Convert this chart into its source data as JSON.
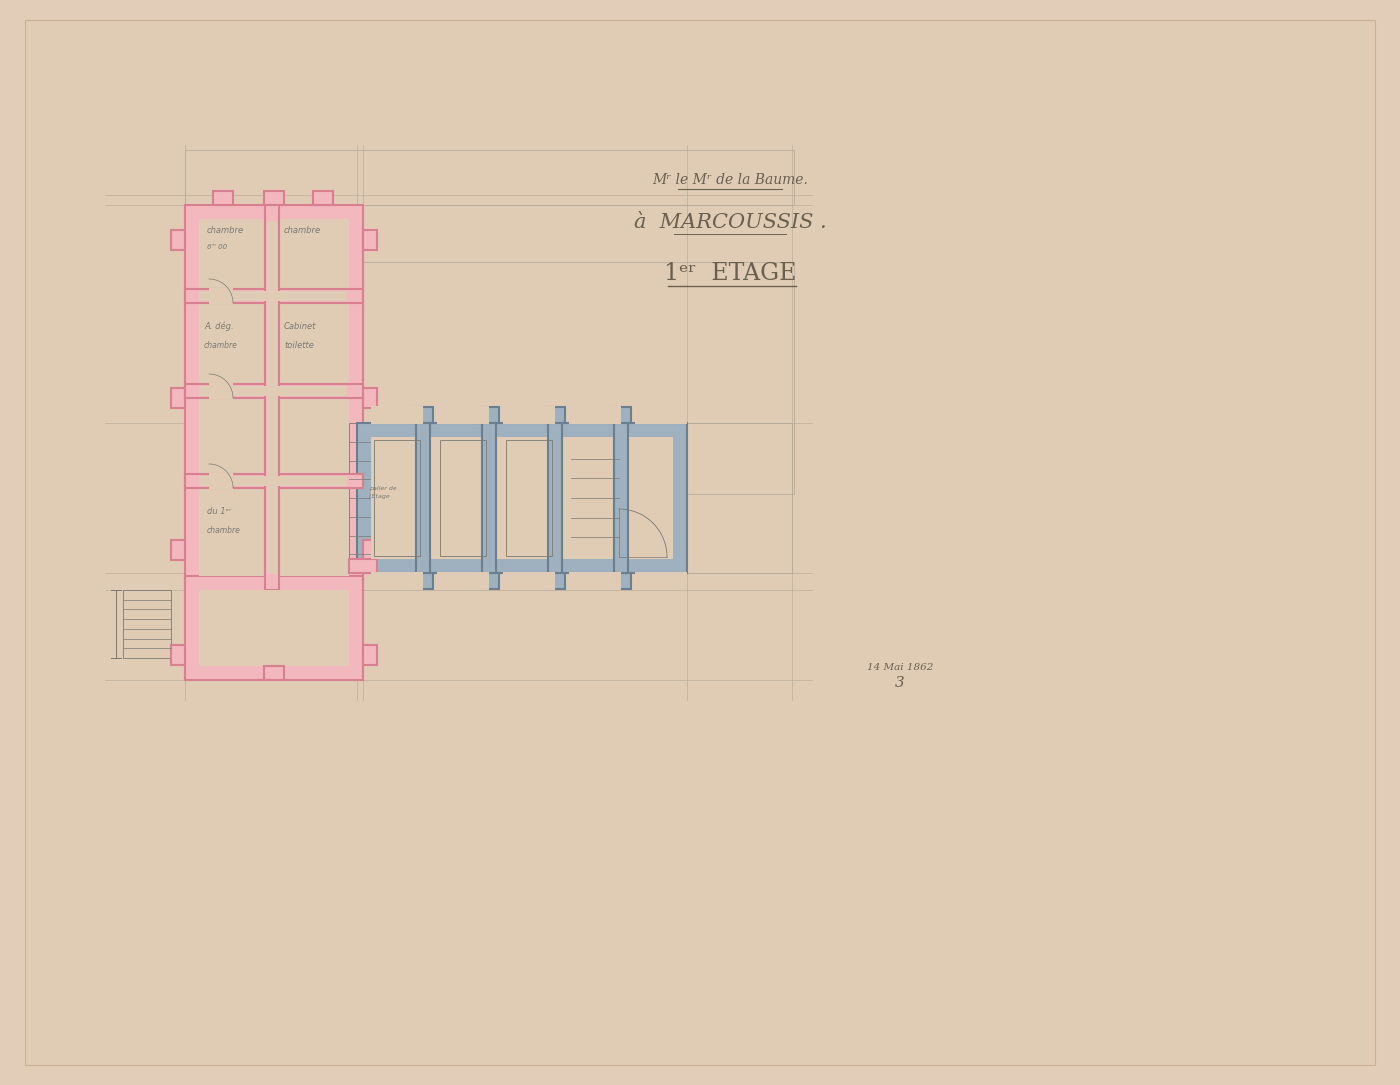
{
  "bg_color": "#e2cdb8",
  "paper_color": "#e0ccb5",
  "title_line1": "Mʳ le Mʳ de la Baume.",
  "title_line2": "à  MARCOUSSIS .",
  "title_line3": "1ᵉʳ  ETAGE",
  "date_text": "14 Mai 1862",
  "page_number": "3",
  "pink_wall_fill": "#f2b8be",
  "pink_wall_edge": "#d98090",
  "gray_wall_fill": "#9fb0bf",
  "gray_wall_edge": "#6a8090",
  "pencil": "#7a7a72",
  "light_pencil": "#b0a898",
  "text_col": "#6a6050"
}
